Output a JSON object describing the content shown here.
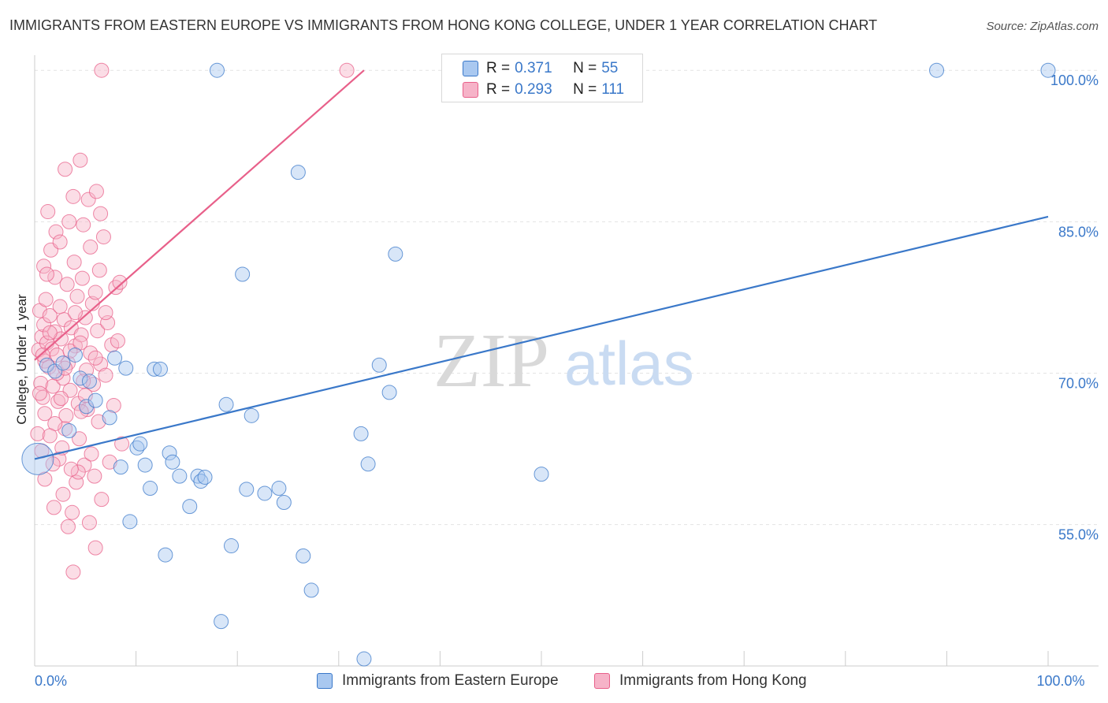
{
  "title": "IMMIGRANTS FROM EASTERN EUROPE VS IMMIGRANTS FROM HONG KONG COLLEGE, UNDER 1 YEAR CORRELATION CHART",
  "source": "Source: ZipAtlas.com",
  "watermark": {
    "zip": "ZIP",
    "atlas": "atlas"
  },
  "legend": {
    "r_label": "R =",
    "n_label": "N =",
    "series": [
      {
        "name": "Immigrants from Eastern Europe",
        "r": "0.371",
        "n": "55"
      },
      {
        "name": "Immigrants from Hong Kong",
        "r": "0.293",
        "n": "111"
      }
    ]
  },
  "colors": {
    "blue": "#3a78c9",
    "blue_fill": "#a9c8f0",
    "pink": "#e8608a",
    "pink_fill": "#f6b3c8",
    "grid": "#e3e3e3",
    "axis": "#cccccc"
  },
  "chart_data": {
    "type": "scatter",
    "title": "IMMIGRANTS FROM EASTERN EUROPE VS IMMIGRANTS FROM HONG KONG COLLEGE, UNDER 1 YEAR CORRELATION CHART",
    "xlabel": "",
    "ylabel": "College, Under 1 year",
    "xlim": [
      0,
      100
    ],
    "ylim": [
      41.0,
      101.5
    ],
    "x_tick_labels": [
      {
        "value": 0,
        "label": "0.0%"
      },
      {
        "value": 100,
        "label": "100.0%"
      }
    ],
    "y_tick_labels": [
      {
        "value": 100,
        "label": "100.0%"
      },
      {
        "value": 85,
        "label": "85.0%"
      },
      {
        "value": 70,
        "label": "70.0%"
      },
      {
        "value": 55,
        "label": "55.0%"
      }
    ],
    "x_minor_ticks": [
      10,
      20,
      30,
      40,
      50,
      60,
      70,
      80,
      90,
      100
    ],
    "series": [
      {
        "name": "Immigrants from Eastern Europe",
        "color": "#3a78c9",
        "trend": {
          "x": [
            0,
            100
          ],
          "y": [
            61.5,
            85.5
          ]
        },
        "points": [
          {
            "x": 0.3,
            "y": 61.5,
            "big": true
          },
          {
            "x": 1.2,
            "y": 70.8
          },
          {
            "x": 2.0,
            "y": 70.2
          },
          {
            "x": 2.8,
            "y": 71.0
          },
          {
            "x": 3.4,
            "y": 64.3
          },
          {
            "x": 4.0,
            "y": 71.8
          },
          {
            "x": 4.5,
            "y": 69.5
          },
          {
            "x": 5.1,
            "y": 66.7
          },
          {
            "x": 5.4,
            "y": 69.2
          },
          {
            "x": 6.0,
            "y": 67.3
          },
          {
            "x": 7.4,
            "y": 65.6
          },
          {
            "x": 7.9,
            "y": 71.5
          },
          {
            "x": 8.5,
            "y": 60.7
          },
          {
            "x": 9.0,
            "y": 70.5
          },
          {
            "x": 9.4,
            "y": 55.3
          },
          {
            "x": 10.1,
            "y": 62.6
          },
          {
            "x": 10.4,
            "y": 63.0
          },
          {
            "x": 10.9,
            "y": 60.9
          },
          {
            "x": 11.4,
            "y": 58.6
          },
          {
            "x": 11.8,
            "y": 70.4
          },
          {
            "x": 12.4,
            "y": 70.4
          },
          {
            "x": 12.9,
            "y": 52.0
          },
          {
            "x": 13.3,
            "y": 62.1
          },
          {
            "x": 13.6,
            "y": 61.2
          },
          {
            "x": 14.3,
            "y": 59.8
          },
          {
            "x": 15.3,
            "y": 56.8
          },
          {
            "x": 16.1,
            "y": 59.8
          },
          {
            "x": 16.4,
            "y": 59.3
          },
          {
            "x": 16.8,
            "y": 59.7
          },
          {
            "x": 18.0,
            "y": 100.0
          },
          {
            "x": 18.4,
            "y": 45.4
          },
          {
            "x": 18.9,
            "y": 66.9
          },
          {
            "x": 19.4,
            "y": 52.9
          },
          {
            "x": 20.5,
            "y": 79.8
          },
          {
            "x": 20.9,
            "y": 58.5
          },
          {
            "x": 21.4,
            "y": 65.8
          },
          {
            "x": 22.7,
            "y": 58.1
          },
          {
            "x": 24.1,
            "y": 58.6
          },
          {
            "x": 24.6,
            "y": 57.2
          },
          {
            "x": 26.0,
            "y": 89.9
          },
          {
            "x": 26.5,
            "y": 51.9
          },
          {
            "x": 27.3,
            "y": 48.5
          },
          {
            "x": 32.2,
            "y": 64.0
          },
          {
            "x": 32.5,
            "y": 41.7
          },
          {
            "x": 32.9,
            "y": 61.0
          },
          {
            "x": 34.0,
            "y": 70.8
          },
          {
            "x": 35.0,
            "y": 68.1
          },
          {
            "x": 35.6,
            "y": 81.8
          },
          {
            "x": 50.0,
            "y": 60.0
          },
          {
            "x": 89.0,
            "y": 100.0
          },
          {
            "x": 100.0,
            "y": 100.0
          }
        ]
      },
      {
        "name": "Immigrants from Hong Kong",
        "color": "#e8608a",
        "trend": {
          "x": [
            0,
            32.5
          ],
          "y": [
            71.3,
            100.0
          ]
        },
        "points": [
          {
            "x": 0.3,
            "y": 64.0
          },
          {
            "x": 0.4,
            "y": 72.3
          },
          {
            "x": 0.5,
            "y": 76.2
          },
          {
            "x": 0.6,
            "y": 69.0
          },
          {
            "x": 0.7,
            "y": 73.6
          },
          {
            "x": 0.7,
            "y": 62.3
          },
          {
            "x": 0.8,
            "y": 67.6
          },
          {
            "x": 0.9,
            "y": 74.8
          },
          {
            "x": 0.9,
            "y": 80.6
          },
          {
            "x": 1.0,
            "y": 71.2
          },
          {
            "x": 1.0,
            "y": 66.0
          },
          {
            "x": 1.1,
            "y": 77.3
          },
          {
            "x": 1.2,
            "y": 73.0
          },
          {
            "x": 1.3,
            "y": 86.0
          },
          {
            "x": 1.4,
            "y": 70.6
          },
          {
            "x": 1.5,
            "y": 75.7
          },
          {
            "x": 1.6,
            "y": 82.2
          },
          {
            "x": 1.7,
            "y": 72.4
          },
          {
            "x": 1.8,
            "y": 68.7
          },
          {
            "x": 1.9,
            "y": 56.7
          },
          {
            "x": 2.0,
            "y": 79.5
          },
          {
            "x": 2.0,
            "y": 74.1
          },
          {
            "x": 2.1,
            "y": 84.0
          },
          {
            "x": 2.2,
            "y": 71.8
          },
          {
            "x": 2.3,
            "y": 67.2
          },
          {
            "x": 2.4,
            "y": 61.5
          },
          {
            "x": 2.5,
            "y": 76.6
          },
          {
            "x": 2.6,
            "y": 73.4
          },
          {
            "x": 2.7,
            "y": 62.6
          },
          {
            "x": 2.8,
            "y": 69.5
          },
          {
            "x": 2.9,
            "y": 75.3
          },
          {
            "x": 3.0,
            "y": 90.2
          },
          {
            "x": 3.1,
            "y": 65.8
          },
          {
            "x": 3.2,
            "y": 78.8
          },
          {
            "x": 3.3,
            "y": 71.0
          },
          {
            "x": 3.4,
            "y": 85.0
          },
          {
            "x": 3.5,
            "y": 68.3
          },
          {
            "x": 3.6,
            "y": 74.5
          },
          {
            "x": 3.7,
            "y": 56.2
          },
          {
            "x": 3.8,
            "y": 50.3
          },
          {
            "x": 3.9,
            "y": 81.0
          },
          {
            "x": 4.0,
            "y": 72.7
          },
          {
            "x": 4.1,
            "y": 59.2
          },
          {
            "x": 4.2,
            "y": 77.6
          },
          {
            "x": 4.3,
            "y": 67.0
          },
          {
            "x": 4.4,
            "y": 63.5
          },
          {
            "x": 4.5,
            "y": 91.1
          },
          {
            "x": 4.6,
            "y": 73.8
          },
          {
            "x": 4.7,
            "y": 79.4
          },
          {
            "x": 4.8,
            "y": 84.7
          },
          {
            "x": 4.9,
            "y": 60.9
          },
          {
            "x": 5.0,
            "y": 75.5
          },
          {
            "x": 5.1,
            "y": 70.3
          },
          {
            "x": 5.2,
            "y": 66.4
          },
          {
            "x": 5.3,
            "y": 87.2
          },
          {
            "x": 5.4,
            "y": 55.2
          },
          {
            "x": 5.5,
            "y": 72.0
          },
          {
            "x": 5.6,
            "y": 62.0
          },
          {
            "x": 5.7,
            "y": 76.9
          },
          {
            "x": 5.8,
            "y": 68.9
          },
          {
            "x": 5.9,
            "y": 59.8
          },
          {
            "x": 6.0,
            "y": 52.7
          },
          {
            "x": 6.1,
            "y": 88.0
          },
          {
            "x": 6.2,
            "y": 74.2
          },
          {
            "x": 6.3,
            "y": 65.2
          },
          {
            "x": 6.4,
            "y": 80.2
          },
          {
            "x": 6.5,
            "y": 70.9
          },
          {
            "x": 6.6,
            "y": 57.5
          },
          {
            "x": 6.8,
            "y": 83.5
          },
          {
            "x": 7.0,
            "y": 69.8
          },
          {
            "x": 7.2,
            "y": 75.0
          },
          {
            "x": 7.4,
            "y": 61.2
          },
          {
            "x": 7.6,
            "y": 72.8
          },
          {
            "x": 7.8,
            "y": 66.8
          },
          {
            "x": 8.0,
            "y": 78.5
          },
          {
            "x": 8.2,
            "y": 73.2
          },
          {
            "x": 8.4,
            "y": 79.0
          },
          {
            "x": 8.6,
            "y": 63.0
          },
          {
            "x": 1.5,
            "y": 74.0
          },
          {
            "x": 2.2,
            "y": 70.0
          },
          {
            "x": 3.0,
            "y": 64.5
          },
          {
            "x": 3.5,
            "y": 72.2
          },
          {
            "x": 4.0,
            "y": 76.0
          },
          {
            "x": 4.8,
            "y": 69.2
          },
          {
            "x": 5.5,
            "y": 82.5
          },
          {
            "x": 6.0,
            "y": 71.5
          },
          {
            "x": 2.8,
            "y": 58.0
          },
          {
            "x": 1.8,
            "y": 61.0
          },
          {
            "x": 3.3,
            "y": 54.8
          },
          {
            "x": 4.3,
            "y": 60.2
          },
          {
            "x": 5.0,
            "y": 67.8
          },
          {
            "x": 6.5,
            "y": 85.8
          },
          {
            "x": 1.2,
            "y": 79.8
          },
          {
            "x": 2.5,
            "y": 83.0
          },
          {
            "x": 3.8,
            "y": 87.5
          },
          {
            "x": 0.5,
            "y": 68.0
          },
          {
            "x": 1.0,
            "y": 59.5
          },
          {
            "x": 2.0,
            "y": 65.0
          },
          {
            "x": 3.0,
            "y": 70.5
          },
          {
            "x": 4.5,
            "y": 73.0
          },
          {
            "x": 6.0,
            "y": 78.0
          },
          {
            "x": 7.0,
            "y": 76.0
          },
          {
            "x": 0.8,
            "y": 71.8
          },
          {
            "x": 1.5,
            "y": 63.8
          },
          {
            "x": 2.6,
            "y": 67.5
          },
          {
            "x": 3.6,
            "y": 60.5
          },
          {
            "x": 4.6,
            "y": 66.2
          },
          {
            "x": 6.6,
            "y": 100.0
          },
          {
            "x": 30.8,
            "y": 100.0
          }
        ]
      }
    ]
  }
}
